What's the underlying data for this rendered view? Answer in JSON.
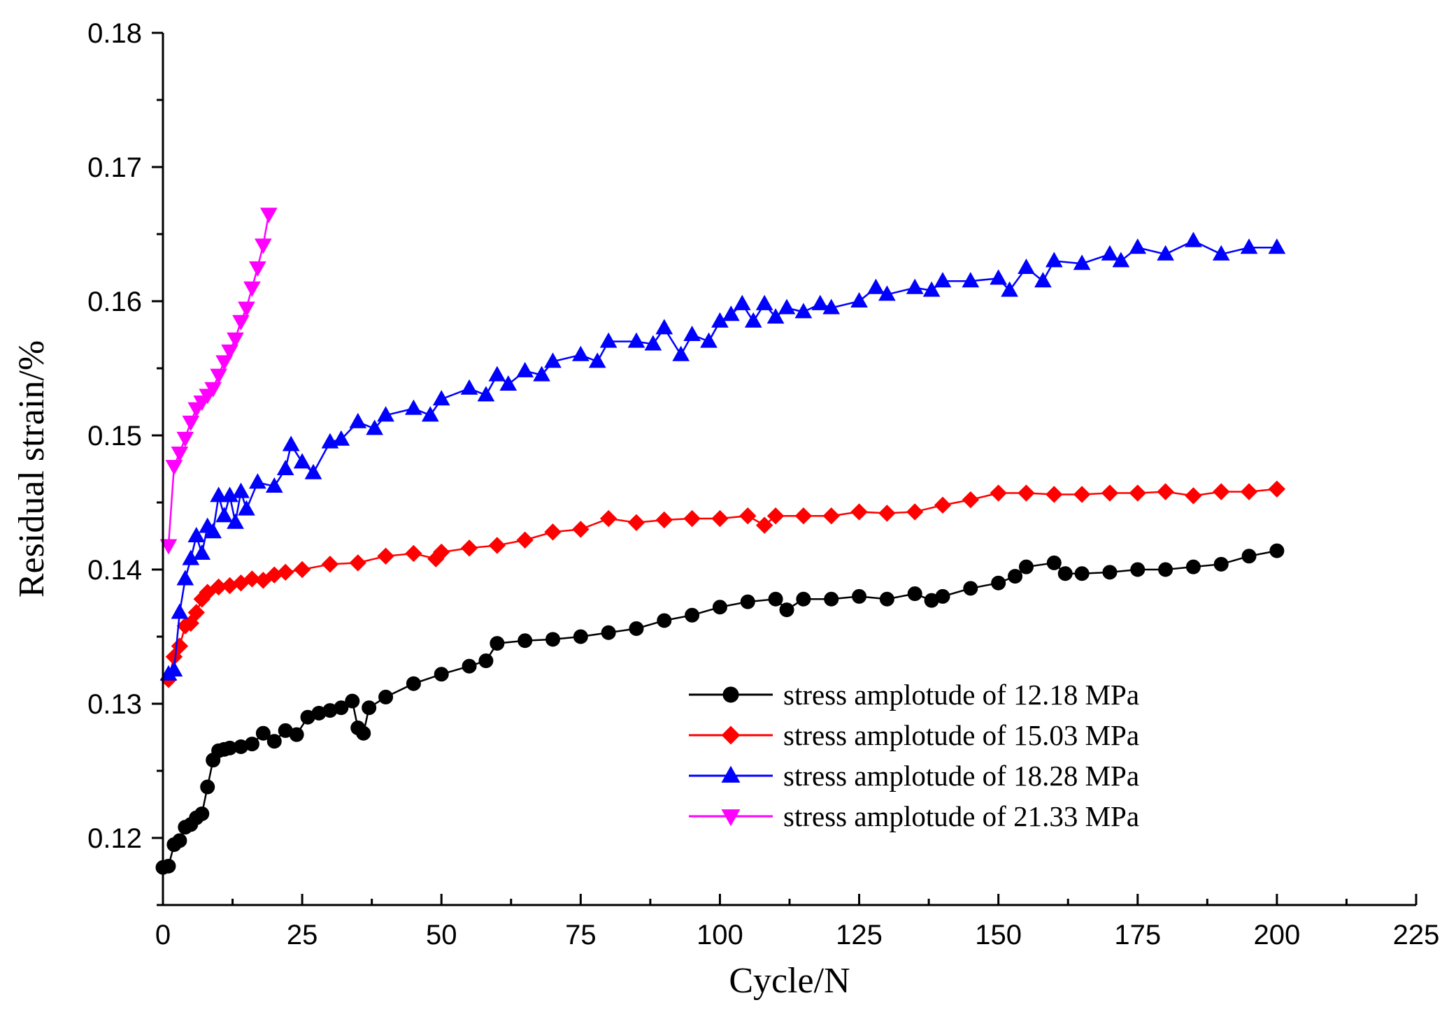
{
  "chart_data": {
    "type": "line",
    "title": "",
    "xlabel": "Cycle/N",
    "ylabel": "Residual strain/%",
    "xlim": [
      0,
      225
    ],
    "ylim": [
      0.115,
      0.18
    ],
    "xticks": [
      "0",
      "25",
      "50",
      "75",
      "100",
      "125",
      "150",
      "175",
      "200",
      "225"
    ],
    "yticks": [
      "0.12",
      "0.13",
      "0.14",
      "0.15",
      "0.16",
      "0.17",
      "0.18"
    ],
    "legend_position": "bottom-right",
    "grid": false,
    "series": [
      {
        "name": "stress amplotude of 12.18 MPa",
        "color": "#000000",
        "marker": "circle",
        "points": [
          [
            0,
            0.1178
          ],
          [
            1,
            0.1179
          ],
          [
            2,
            0.1195
          ],
          [
            3,
            0.1198
          ],
          [
            4,
            0.1208
          ],
          [
            5,
            0.121
          ],
          [
            6,
            0.1215
          ],
          [
            7,
            0.1218
          ],
          [
            8,
            0.1238
          ],
          [
            9,
            0.1258
          ],
          [
            10,
            0.1265
          ],
          [
            11,
            0.1266
          ],
          [
            12,
            0.1267
          ],
          [
            14,
            0.1268
          ],
          [
            16,
            0.127
          ],
          [
            18,
            0.1278
          ],
          [
            20,
            0.1272
          ],
          [
            22,
            0.128
          ],
          [
            24,
            0.1277
          ],
          [
            26,
            0.129
          ],
          [
            28,
            0.1293
          ],
          [
            30,
            0.1295
          ],
          [
            32,
            0.1297
          ],
          [
            34,
            0.1302
          ],
          [
            35,
            0.1282
          ],
          [
            36,
            0.1278
          ],
          [
            37,
            0.1297
          ],
          [
            40,
            0.1305
          ],
          [
            45,
            0.1315
          ],
          [
            50,
            0.1322
          ],
          [
            55,
            0.1328
          ],
          [
            58,
            0.1332
          ],
          [
            60,
            0.1345
          ],
          [
            65,
            0.1347
          ],
          [
            70,
            0.1348
          ],
          [
            75,
            0.135
          ],
          [
            80,
            0.1353
          ],
          [
            85,
            0.1356
          ],
          [
            90,
            0.1362
          ],
          [
            95,
            0.1366
          ],
          [
            100,
            0.1372
          ],
          [
            105,
            0.1376
          ],
          [
            110,
            0.1378
          ],
          [
            112,
            0.137
          ],
          [
            115,
            0.1378
          ],
          [
            120,
            0.1378
          ],
          [
            125,
            0.138
          ],
          [
            130,
            0.1378
          ],
          [
            135,
            0.1382
          ],
          [
            138,
            0.1377
          ],
          [
            140,
            0.138
          ],
          [
            145,
            0.1386
          ],
          [
            150,
            0.139
          ],
          [
            153,
            0.1395
          ],
          [
            155,
            0.1402
          ],
          [
            160,
            0.1405
          ],
          [
            162,
            0.1397
          ],
          [
            165,
            0.1397
          ],
          [
            170,
            0.1398
          ],
          [
            175,
            0.14
          ],
          [
            180,
            0.14
          ],
          [
            185,
            0.1402
          ],
          [
            190,
            0.1404
          ],
          [
            195,
            0.141
          ],
          [
            200,
            0.1414
          ]
        ]
      },
      {
        "name": "stress amplotude of 15.03 MPa",
        "color": "#ff0000",
        "marker": "diamond",
        "points": [
          [
            1,
            0.1318
          ],
          [
            2,
            0.1335
          ],
          [
            3,
            0.1343
          ],
          [
            4,
            0.1358
          ],
          [
            5,
            0.136
          ],
          [
            6,
            0.1368
          ],
          [
            7,
            0.1378
          ],
          [
            8,
            0.1383
          ],
          [
            10,
            0.1387
          ],
          [
            12,
            0.1388
          ],
          [
            14,
            0.139
          ],
          [
            16,
            0.1393
          ],
          [
            18,
            0.1392
          ],
          [
            20,
            0.1396
          ],
          [
            22,
            0.1398
          ],
          [
            25,
            0.14
          ],
          [
            30,
            0.1404
          ],
          [
            35,
            0.1405
          ],
          [
            40,
            0.141
          ],
          [
            45,
            0.1412
          ],
          [
            49,
            0.1408
          ],
          [
            50,
            0.1413
          ],
          [
            55,
            0.1416
          ],
          [
            60,
            0.1418
          ],
          [
            65,
            0.1422
          ],
          [
            70,
            0.1428
          ],
          [
            75,
            0.143
          ],
          [
            80,
            0.1438
          ],
          [
            85,
            0.1435
          ],
          [
            90,
            0.1437
          ],
          [
            95,
            0.1438
          ],
          [
            100,
            0.1438
          ],
          [
            105,
            0.144
          ],
          [
            108,
            0.1433
          ],
          [
            110,
            0.144
          ],
          [
            115,
            0.144
          ],
          [
            120,
            0.144
          ],
          [
            125,
            0.1443
          ],
          [
            130,
            0.1442
          ],
          [
            135,
            0.1443
          ],
          [
            140,
            0.1448
          ],
          [
            145,
            0.1452
          ],
          [
            150,
            0.1457
          ],
          [
            155,
            0.1457
          ],
          [
            160,
            0.1456
          ],
          [
            165,
            0.1456
          ],
          [
            170,
            0.1457
          ],
          [
            175,
            0.1457
          ],
          [
            180,
            0.1458
          ],
          [
            185,
            0.1455
          ],
          [
            190,
            0.1458
          ],
          [
            195,
            0.1458
          ],
          [
            200,
            0.146
          ]
        ]
      },
      {
        "name": "stress amplotude of 18.28 MPa",
        "color": "#0000ff",
        "marker": "triangle-up",
        "points": [
          [
            1,
            0.1322
          ],
          [
            2,
            0.1325
          ],
          [
            3,
            0.1368
          ],
          [
            4,
            0.1393
          ],
          [
            5,
            0.1408
          ],
          [
            6,
            0.1425
          ],
          [
            7,
            0.1412
          ],
          [
            8,
            0.1432
          ],
          [
            9,
            0.1428
          ],
          [
            10,
            0.1455
          ],
          [
            11,
            0.144
          ],
          [
            12,
            0.1455
          ],
          [
            13,
            0.1435
          ],
          [
            14,
            0.1458
          ],
          [
            15,
            0.1445
          ],
          [
            17,
            0.1465
          ],
          [
            20,
            0.1462
          ],
          [
            22,
            0.1475
          ],
          [
            23,
            0.1493
          ],
          [
            25,
            0.148
          ],
          [
            27,
            0.1472
          ],
          [
            30,
            0.1495
          ],
          [
            32,
            0.1497
          ],
          [
            35,
            0.151
          ],
          [
            38,
            0.1505
          ],
          [
            40,
            0.1515
          ],
          [
            45,
            0.152
          ],
          [
            48,
            0.1515
          ],
          [
            50,
            0.1527
          ],
          [
            55,
            0.1535
          ],
          [
            58,
            0.153
          ],
          [
            60,
            0.1545
          ],
          [
            62,
            0.1538
          ],
          [
            65,
            0.1548
          ],
          [
            68,
            0.1545
          ],
          [
            70,
            0.1555
          ],
          [
            75,
            0.156
          ],
          [
            78,
            0.1555
          ],
          [
            80,
            0.157
          ],
          [
            85,
            0.157
          ],
          [
            88,
            0.1568
          ],
          [
            90,
            0.158
          ],
          [
            93,
            0.156
          ],
          [
            95,
            0.1575
          ],
          [
            98,
            0.157
          ],
          [
            100,
            0.1585
          ],
          [
            102,
            0.159
          ],
          [
            104,
            0.1598
          ],
          [
            106,
            0.1585
          ],
          [
            108,
            0.1598
          ],
          [
            110,
            0.1588
          ],
          [
            112,
            0.1595
          ],
          [
            115,
            0.1592
          ],
          [
            118,
            0.1598
          ],
          [
            120,
            0.1595
          ],
          [
            125,
            0.16
          ],
          [
            128,
            0.161
          ],
          [
            130,
            0.1605
          ],
          [
            135,
            0.161
          ],
          [
            138,
            0.1608
          ],
          [
            140,
            0.1615
          ],
          [
            145,
            0.1615
          ],
          [
            150,
            0.1617
          ],
          [
            152,
            0.1608
          ],
          [
            155,
            0.1625
          ],
          [
            158,
            0.1615
          ],
          [
            160,
            0.163
          ],
          [
            165,
            0.1628
          ],
          [
            170,
            0.1635
          ],
          [
            172,
            0.163
          ],
          [
            175,
            0.164
          ],
          [
            180,
            0.1635
          ],
          [
            185,
            0.1645
          ],
          [
            190,
            0.1635
          ],
          [
            195,
            0.164
          ],
          [
            200,
            0.164
          ]
        ]
      },
      {
        "name": "stress amplotude of 21.33 MPa",
        "color": "#ff00ff",
        "marker": "triangle-down",
        "points": [
          [
            1,
            0.1418
          ],
          [
            2,
            0.1477
          ],
          [
            3,
            0.1487
          ],
          [
            4,
            0.1498
          ],
          [
            5,
            0.151
          ],
          [
            6,
            0.152
          ],
          [
            7,
            0.1525
          ],
          [
            8,
            0.153
          ],
          [
            9,
            0.1535
          ],
          [
            10,
            0.1545
          ],
          [
            11,
            0.1555
          ],
          [
            12,
            0.1563
          ],
          [
            13,
            0.1572
          ],
          [
            14,
            0.1585
          ],
          [
            15,
            0.1595
          ],
          [
            16,
            0.161
          ],
          [
            17,
            0.1625
          ],
          [
            18,
            0.1642
          ],
          [
            19,
            0.1665
          ]
        ]
      }
    ]
  }
}
